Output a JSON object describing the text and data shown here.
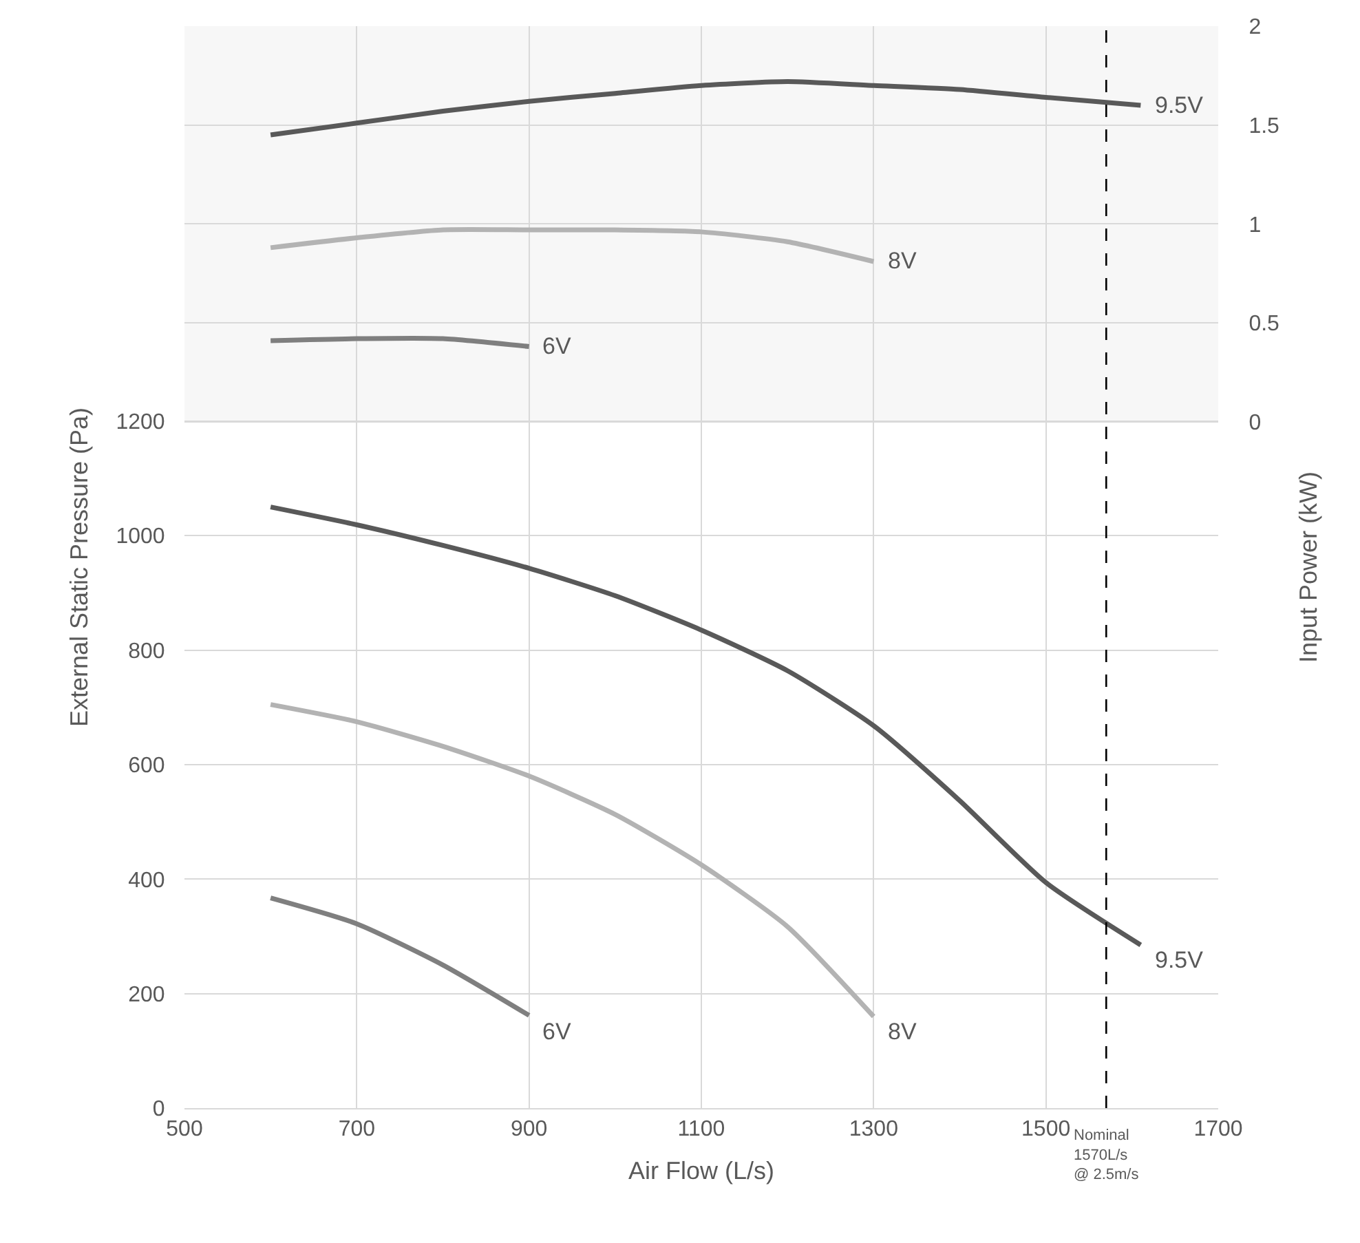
{
  "chart_data": {
    "type": "line",
    "xlabel": "Air Flow (L/s)",
    "ylabel": "External Static Pressure (Pa)",
    "y2label": "Input Power (kW)",
    "xlim": [
      500,
      1700
    ],
    "xticks": [
      500,
      700,
      900,
      1100,
      1300,
      1500,
      1700
    ],
    "ylim": [
      0,
      1890
    ],
    "yticks": [
      0,
      200,
      400,
      600,
      800,
      1000,
      1200
    ],
    "y2lim": [
      -3.47,
      2
    ],
    "y2ticks": [
      0,
      0.5,
      1,
      1.5,
      2
    ],
    "grid": true,
    "legend": false,
    "marker": "none",
    "line_style": "solid",
    "series": [
      {
        "name": "9.5V",
        "color": "#595959",
        "x": [
          600,
          700,
          800,
          900,
          1000,
          1100,
          1200,
          1300,
          1400,
          1500,
          1610
        ],
        "values": [
          1050,
          1019,
          983,
          943,
          895,
          835,
          764,
          668,
          537,
          394,
          285
        ]
      },
      {
        "name": "8V",
        "color": "#b3b3b3",
        "x": [
          600,
          700,
          800,
          900,
          1000,
          1100,
          1200,
          1300
        ],
        "values": [
          705,
          675,
          632,
          580,
          513,
          425,
          317,
          160
        ]
      },
      {
        "name": "6V",
        "color": "#7f7f7f",
        "x": [
          600,
          700,
          800,
          900
        ],
        "values": [
          367,
          322,
          250,
          162
        ]
      },
      {
        "name": "9.5V",
        "color": "#595959",
        "axis": "y2",
        "x": [
          600,
          700,
          800,
          900,
          1000,
          1100,
          1200,
          1300,
          1400,
          1500,
          1610
        ],
        "values": [
          1.45,
          1.51,
          1.57,
          1.62,
          1.66,
          1.7,
          1.72,
          1.7,
          1.68,
          1.64,
          1.6
        ]
      },
      {
        "name": "8V",
        "color": "#b3b3b3",
        "axis": "y2",
        "x": [
          600,
          700,
          800,
          900,
          1000,
          1100,
          1200,
          1300
        ],
        "values": [
          0.88,
          0.93,
          0.97,
          0.97,
          0.97,
          0.96,
          0.91,
          0.81
        ]
      },
      {
        "name": "6V",
        "color": "#7f7f7f",
        "axis": "y2",
        "x": [
          600,
          700,
          800,
          900
        ],
        "values": [
          0.41,
          0.42,
          0.42,
          0.38
        ]
      }
    ],
    "bands": [
      {
        "axis": "y2",
        "from": 0,
        "to": 2,
        "color": "#f7f7f7"
      }
    ],
    "ref_lines": [
      {
        "axis": "x",
        "value": 1570,
        "label": "Nominal\n1570L/s\n@ 2.5m/s",
        "color": "#000000",
        "line_style": "dashed"
      }
    ]
  }
}
